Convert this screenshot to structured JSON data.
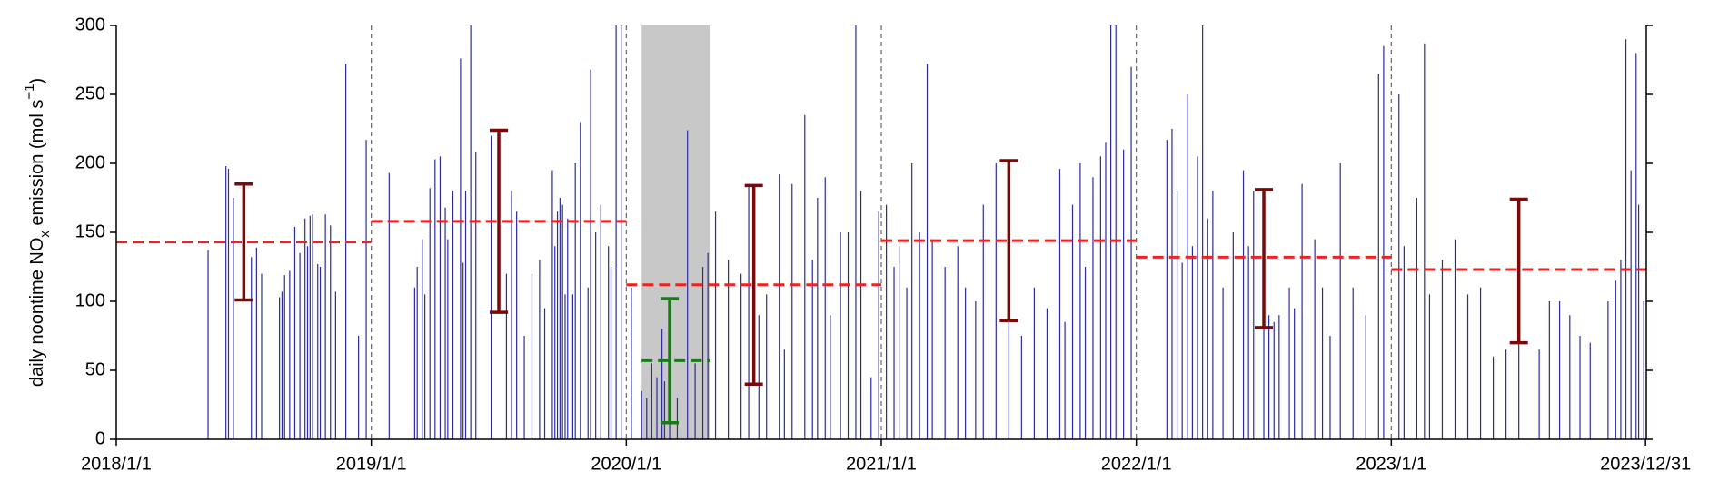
{
  "chart_data": {
    "type": "spike",
    "y_label": [
      "daily noontime NO",
      "x",
      " emission (mol s",
      "−1",
      ")"
    ],
    "xlim": [
      2018,
      2024
    ],
    "ylim": [
      0,
      300
    ],
    "xticks": [
      {
        "value": 2018,
        "label": "2018/1/1"
      },
      {
        "value": 2019,
        "label": "2019/1/1"
      },
      {
        "value": 2020,
        "label": "2020/1/1"
      },
      {
        "value": 2021,
        "label": "2021/1/1"
      },
      {
        "value": 2022,
        "label": "2022/1/1"
      },
      {
        "value": 2023,
        "label": "2023/1/1"
      },
      {
        "value": 2023.997,
        "label": "2023/12/31"
      }
    ],
    "yticks": [
      0,
      50,
      100,
      150,
      200,
      250,
      300
    ],
    "color": "#2b2b9e",
    "shade": {
      "x": [
        2020.06,
        2020.33
      ],
      "color": "#c8c8c8"
    },
    "x": [
      2018.36,
      2018.43,
      2018.44,
      2018.46,
      2018.53,
      2018.55,
      2018.57,
      2018.64,
      2018.65,
      2018.66,
      2018.68,
      2018.7,
      2018.72,
      2018.74,
      2018.75,
      2018.76,
      2018.77,
      2018.79,
      2018.8,
      2018.82,
      2018.84,
      2018.86,
      2018.9,
      2018.95,
      2018.98,
      2019.07,
      2019.17,
      2019.18,
      2019.2,
      2019.21,
      2019.23,
      2019.25,
      2019.27,
      2019.29,
      2019.3,
      2019.32,
      2019.35,
      2019.36,
      2019.37,
      2019.39,
      2019.41,
      2019.47,
      2019.53,
      2019.55,
      2019.57,
      2019.6,
      2019.63,
      2019.66,
      2019.68,
      2019.71,
      2019.72,
      2019.73,
      2019.74,
      2019.75,
      2019.76,
      2019.77,
      2019.79,
      2019.8,
      2019.82,
      2019.85,
      2019.86,
      2019.88,
      2019.9,
      2019.93,
      2019.94,
      2019.96,
      2019.98,
      2020.02,
      2020.06,
      2020.08,
      2020.1,
      2020.12,
      2020.14,
      2020.15,
      2020.17,
      2020.2,
      2020.24,
      2020.27,
      2020.3,
      2020.32,
      2020.35,
      2020.4,
      2020.45,
      2020.48,
      2020.52,
      2020.55,
      2020.6,
      2020.62,
      2020.65,
      2020.7,
      2020.73,
      2020.75,
      2020.78,
      2020.8,
      2020.84,
      2020.87,
      2020.9,
      2020.92,
      2020.96,
      2020.99,
      2021.02,
      2021.05,
      2021.07,
      2021.1,
      2021.12,
      2021.15,
      2021.18,
      2021.2,
      2021.25,
      2021.3,
      2021.33,
      2021.37,
      2021.4,
      2021.45,
      2021.5,
      2021.55,
      2021.6,
      2021.65,
      2021.7,
      2021.72,
      2021.75,
      2021.78,
      2021.8,
      2021.83,
      2021.86,
      2021.88,
      2021.9,
      2021.92,
      2021.95,
      2021.98,
      2022.12,
      2022.14,
      2022.16,
      2022.18,
      2022.2,
      2022.22,
      2022.24,
      2022.26,
      2022.28,
      2022.3,
      2022.34,
      2022.38,
      2022.42,
      2022.44,
      2022.46,
      2022.5,
      2022.52,
      2022.54,
      2022.56,
      2022.6,
      2022.62,
      2022.65,
      2022.7,
      2022.73,
      2022.76,
      2022.8,
      2022.85,
      2022.9,
      2022.95,
      2022.97,
      2023.03,
      2023.05,
      2023.1,
      2023.13,
      2023.15,
      2023.2,
      2023.25,
      2023.3,
      2023.35,
      2023.4,
      2023.45,
      2023.5,
      2023.58,
      2023.62,
      2023.66,
      2023.7,
      2023.74,
      2023.78,
      2023.85,
      2023.88,
      2023.9,
      2023.92,
      2023.94,
      2023.96,
      2023.97,
      2023.99
    ],
    "values": [
      137,
      198,
      196,
      175,
      132,
      139,
      120,
      103,
      107,
      119,
      122,
      154,
      135,
      160,
      140,
      162,
      163,
      127,
      125,
      163,
      155,
      107,
      272,
      75,
      217,
      193,
      110,
      125,
      145,
      105,
      182,
      203,
      205,
      168,
      145,
      180,
      276,
      128,
      180,
      300,
      208,
      220,
      120,
      180,
      165,
      75,
      120,
      130,
      95,
      195,
      140,
      165,
      175,
      170,
      105,
      160,
      105,
      200,
      230,
      110,
      268,
      150,
      170,
      140,
      125,
      300,
      300,
      110,
      35,
      30,
      55,
      45,
      80,
      42,
      48,
      30,
      224,
      55,
      125,
      135,
      165,
      130,
      120,
      185,
      90,
      105,
      192,
      65,
      185,
      235,
      130,
      175,
      190,
      90,
      150,
      150,
      300,
      180,
      45,
      165,
      170,
      125,
      140,
      110,
      200,
      150,
      272,
      145,
      125,
      140,
      110,
      100,
      170,
      200,
      120,
      75,
      110,
      95,
      196,
      85,
      170,
      200,
      125,
      190,
      205,
      215,
      300,
      300,
      210,
      270,
      217,
      225,
      180,
      128,
      250,
      140,
      205,
      300,
      160,
      180,
      110,
      150,
      195,
      140,
      180,
      110,
      90,
      85,
      90,
      110,
      95,
      185,
      145,
      110,
      75,
      200,
      110,
      90,
      265,
      285,
      250,
      140,
      175,
      287,
      105,
      130,
      145,
      105,
      110,
      60,
      65,
      175,
      65,
      100,
      100,
      90,
      75,
      70,
      100,
      115,
      130,
      290,
      195,
      280,
      170,
      100
    ],
    "mean_lines": [
      {
        "x": [
          2018,
          2019
        ],
        "value": 143,
        "color": "#ee2222"
      },
      {
        "x": [
          2019,
          2020
        ],
        "value": 158,
        "color": "#ee2222"
      },
      {
        "x": [
          2020,
          2021
        ],
        "value": 112,
        "color": "#ee2222"
      },
      {
        "x": [
          2021,
          2022
        ],
        "value": 144,
        "color": "#ee2222"
      },
      {
        "x": [
          2022,
          2023
        ],
        "value": 132,
        "color": "#ee2222"
      },
      {
        "x": [
          2023,
          2024
        ],
        "value": 123,
        "color": "#ee2222"
      },
      {
        "x": [
          2020.06,
          2020.33
        ],
        "value": 57,
        "color": "#1a7a1a"
      }
    ],
    "error_bars": [
      {
        "x": 2018.5,
        "value": 143,
        "error": 42,
        "color": "#7a0a0a"
      },
      {
        "x": 2019.5,
        "value": 158,
        "error": 66,
        "color": "#7a0a0a"
      },
      {
        "x": 2020.5,
        "value": 112,
        "error": 72,
        "color": "#7a0a0a"
      },
      {
        "x": 2021.5,
        "value": 144,
        "error": 58,
        "color": "#7a0a0a"
      },
      {
        "x": 2022.5,
        "value": 131,
        "error": 50,
        "color": "#7a0a0a"
      },
      {
        "x": 2023.5,
        "value": 122,
        "error": 52,
        "color": "#7a0a0a"
      },
      {
        "x": 2020.17,
        "value": 57,
        "error": 45,
        "color": "#1a7a1a"
      }
    ]
  }
}
